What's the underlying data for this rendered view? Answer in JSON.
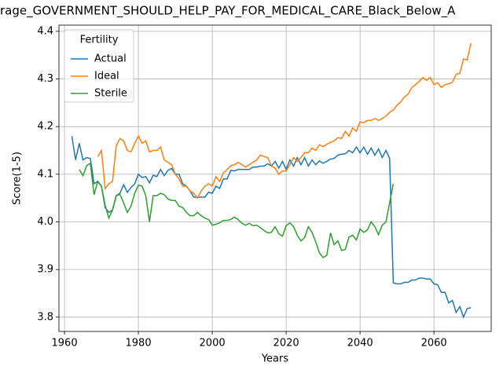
{
  "chart_data": {
    "type": "line",
    "title": "rage_GOVERNMENT_SHOULD_HELP_PAY_FOR_MEDICAL_CARE_Black_Below_A",
    "x_label": "Years",
    "y_label": "Score(1-5)",
    "legend_title": "Fertility",
    "legend_position": "upper left",
    "grid": true,
    "xlim": [
      1958.5,
      2075.5
    ],
    "ylim": [
      3.77,
      4.413
    ],
    "xticks": [
      1960,
      1980,
      2000,
      2020,
      2040,
      2060
    ],
    "yticks": [
      3.8,
      3.9,
      {
        "value": 4,
        "label": "4.0"
      },
      4.1,
      4.2,
      4.3,
      4.4
    ],
    "x": [
      1962,
      1963,
      1964,
      1965,
      1966,
      1967,
      1968,
      1969,
      1970,
      1971,
      1972,
      1973,
      1974,
      1975,
      1976,
      1977,
      1978,
      1979,
      1980,
      1981,
      1982,
      1983,
      1984,
      1985,
      1986,
      1987,
      1988,
      1989,
      1990,
      1991,
      1992,
      1993,
      1994,
      1995,
      1996,
      1997,
      1998,
      1999,
      2000,
      2001,
      2002,
      2003,
      2004,
      2005,
      2006,
      2007,
      2008,
      2009,
      2010,
      2011,
      2012,
      2013,
      2014,
      2015,
      2016,
      2017,
      2018,
      2019,
      2020,
      2021,
      2022,
      2023,
      2024,
      2025,
      2026,
      2027,
      2028,
      2029,
      2030,
      2031,
      2032,
      2033,
      2034,
      2035,
      2036,
      2037,
      2038,
      2039,
      2040,
      2041,
      2042,
      2043,
      2044,
      2045,
      2046,
      2047,
      2048,
      2049,
      2050,
      2051,
      2052,
      2053,
      2054,
      2055,
      2056,
      2057,
      2058,
      2059,
      2060,
      2061,
      2062,
      2063,
      2064,
      2065,
      2066,
      2067,
      2068,
      2069,
      2070
    ],
    "series": [
      {
        "name": "Actual",
        "color": "#1f77b4",
        "values": [
          4.18,
          4.13,
          4.165,
          4.13,
          4.135,
          4.133,
          4.08,
          4.085,
          4.075,
          4.03,
          4.02,
          4.025,
          4.055,
          4.06,
          4.078,
          4.062,
          4.072,
          4.08,
          4.1,
          4.093,
          4.095,
          4.082,
          4.098,
          4.095,
          4.11,
          4.097,
          4.108,
          4.112,
          4.1,
          4.1,
          4.08,
          4.075,
          4.065,
          4.052,
          4.052,
          4.052,
          4.052,
          4.062,
          4.06,
          4.075,
          4.07,
          4.09,
          4.09,
          4.108,
          4.107,
          4.11,
          4.11,
          4.11,
          4.11,
          4.115,
          4.115,
          4.117,
          4.117,
          4.122,
          4.117,
          4.127,
          4.113,
          4.127,
          4.11,
          4.13,
          4.117,
          4.135,
          4.12,
          4.135,
          4.117,
          4.13,
          4.12,
          4.128,
          4.123,
          4.127,
          4.132,
          4.133,
          4.14,
          4.142,
          4.143,
          4.15,
          4.145,
          4.157,
          4.145,
          4.157,
          4.142,
          4.155,
          4.14,
          4.153,
          4.135,
          4.15,
          4.133,
          3.872,
          3.87,
          3.87,
          3.873,
          3.873,
          3.878,
          3.878,
          3.882,
          3.882,
          3.88,
          3.88,
          3.87,
          3.868,
          3.852,
          3.852,
          3.83,
          3.835,
          3.81,
          3.822,
          3.8,
          3.818,
          3.82
        ]
      },
      {
        "name": "Ideal",
        "color": "#ff7f0e",
        "values": [
          null,
          null,
          null,
          null,
          null,
          null,
          null,
          4.137,
          4.15,
          4.07,
          4.08,
          4.085,
          4.16,
          4.175,
          4.17,
          4.15,
          4.147,
          4.165,
          4.18,
          4.165,
          4.17,
          4.147,
          4.15,
          4.15,
          4.157,
          4.13,
          4.125,
          4.12,
          4.1,
          4.09,
          4.075,
          4.075,
          4.065,
          4.06,
          4.05,
          4.065,
          4.075,
          4.08,
          4.075,
          4.095,
          4.085,
          4.103,
          4.11,
          4.118,
          4.12,
          4.125,
          4.12,
          4.115,
          4.12,
          4.125,
          4.13,
          4.14,
          4.137,
          4.135,
          4.117,
          4.113,
          4.1,
          4.107,
          4.107,
          4.12,
          4.135,
          4.127,
          4.135,
          4.145,
          4.145,
          4.155,
          4.15,
          4.162,
          4.158,
          4.163,
          4.167,
          4.17,
          4.177,
          4.175,
          4.19,
          4.18,
          4.197,
          4.19,
          4.21,
          4.208,
          4.213,
          4.213,
          4.217,
          4.213,
          4.217,
          4.222,
          4.23,
          4.235,
          4.245,
          4.252,
          4.262,
          4.268,
          4.282,
          4.288,
          4.295,
          4.303,
          4.297,
          4.303,
          4.288,
          4.292,
          4.282,
          4.288,
          4.29,
          4.293,
          4.31,
          4.312,
          4.342,
          4.34,
          4.375
        ]
      },
      {
        "name": "Sterile",
        "color": "#2ca02c",
        "values": [
          null,
          null,
          4.11,
          4.097,
          4.118,
          4.123,
          4.057,
          4.085,
          4.075,
          4.035,
          4.008,
          4.025,
          4.055,
          4.058,
          4.04,
          4.02,
          4.033,
          4.06,
          4.077,
          4.075,
          4.055,
          4.0,
          4.055,
          4.055,
          4.06,
          4.057,
          4.048,
          4.045,
          4.045,
          4.033,
          4.03,
          4.02,
          4.013,
          4.013,
          4.02,
          4.013,
          4.008,
          4.005,
          3.993,
          3.995,
          3.998,
          4.003,
          4.003,
          4.005,
          4.01,
          4.005,
          3.997,
          3.993,
          3.997,
          3.992,
          3.993,
          3.988,
          3.982,
          3.977,
          3.978,
          3.99,
          3.975,
          3.97,
          3.992,
          3.998,
          3.99,
          3.972,
          3.96,
          3.967,
          3.99,
          3.978,
          3.958,
          3.935,
          3.925,
          3.93,
          3.977,
          3.952,
          3.96,
          3.94,
          3.942,
          3.968,
          3.972,
          3.962,
          3.985,
          3.978,
          3.983,
          4.0,
          3.99,
          3.973,
          3.993,
          4.0,
          4.04,
          4.08,
          null,
          null,
          null,
          null,
          null,
          null,
          null,
          null,
          null,
          null,
          null,
          null,
          null,
          null,
          null,
          null,
          null,
          null,
          null,
          null,
          null
        ]
      }
    ]
  }
}
